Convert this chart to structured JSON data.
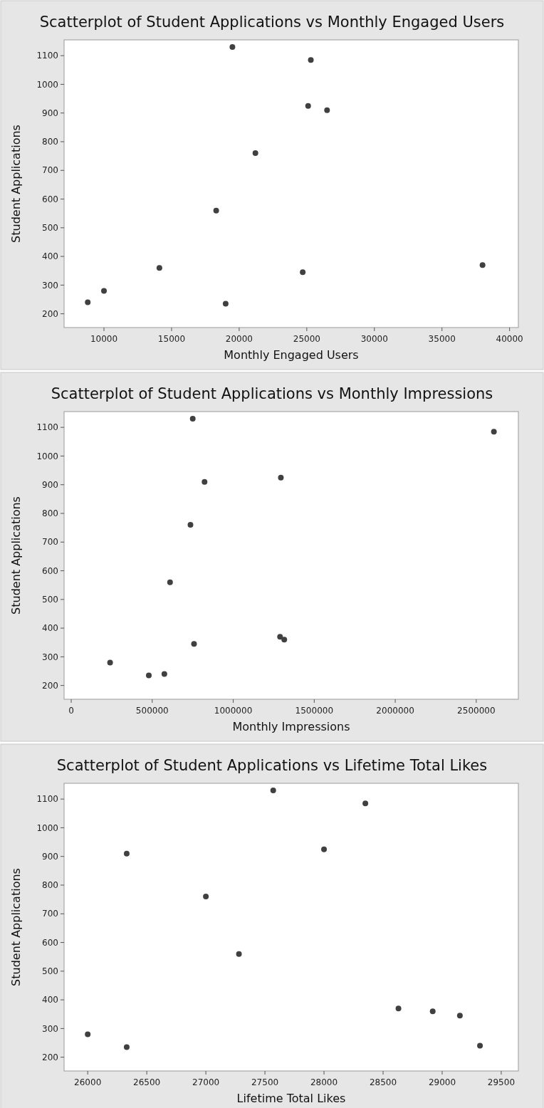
{
  "chart_data": [
    {
      "type": "scatter",
      "title": "Scatterplot of Student Applications vs Monthly Engaged Users",
      "xlabel": "Monthly Engaged Users",
      "ylabel": "Student Applications",
      "marker": "circle",
      "x": [
        8800,
        10000,
        14100,
        18300,
        19500,
        21200,
        19000,
        24700,
        25100,
        25300,
        26500,
        38000
      ],
      "series": [
        {
          "color": "#404040",
          "values": [
            240,
            280,
            360,
            560,
            1130,
            760,
            235,
            345,
            925,
            1085,
            910,
            370
          ]
        }
      ],
      "xlim": [
        7050,
        40650
      ],
      "xticks": [
        10000,
        15000,
        20000,
        25000,
        30000,
        35000,
        40000
      ],
      "ylim": [
        152,
        1155
      ],
      "yticks": [
        200,
        300,
        400,
        500,
        600,
        700,
        800,
        900,
        1000,
        1100
      ]
    },
    {
      "type": "scatter",
      "title": "Scatterplot of Student Applications vs Monthly Impressions",
      "xlabel": "Monthly Impressions",
      "ylabel": "Student Applications",
      "marker": "circle",
      "x": [
        575000,
        240000,
        1315000,
        610000,
        750000,
        736000,
        479000,
        758000,
        1294000,
        2609000,
        823000,
        1289000
      ],
      "series": [
        {
          "color": "#404040",
          "values": [
            240,
            280,
            360,
            560,
            1130,
            760,
            235,
            345,
            925,
            1085,
            910,
            370
          ]
        }
      ],
      "xlim": [
        -44000,
        2760000
      ],
      "xticks": [
        0,
        500000,
        1000000,
        1500000,
        2000000,
        2500000
      ],
      "ylim": [
        152,
        1155
      ],
      "yticks": [
        200,
        300,
        400,
        500,
        600,
        700,
        800,
        900,
        1000,
        1100
      ]
    },
    {
      "type": "scatter",
      "title": "Scatterplot of Student Applications vs Lifetime Total Likes",
      "xlabel": "Lifetime Total Likes",
      "ylabel": "Student Applications",
      "marker": "circle",
      "x": [
        29320,
        26000,
        28920,
        27280,
        27570,
        27000,
        26330,
        29150,
        28000,
        28350,
        26330,
        28630
      ],
      "series": [
        {
          "color": "#404040",
          "values": [
            240,
            280,
            360,
            560,
            1130,
            760,
            235,
            345,
            925,
            1085,
            910,
            370
          ]
        }
      ],
      "xlim": [
        25800,
        29645
      ],
      "xticks": [
        26000,
        26500,
        27000,
        27500,
        28000,
        28500,
        29000,
        29500
      ],
      "ylim": [
        152,
        1155
      ],
      "yticks": [
        200,
        300,
        400,
        500,
        600,
        700,
        800,
        900,
        1000,
        1100
      ]
    }
  ]
}
